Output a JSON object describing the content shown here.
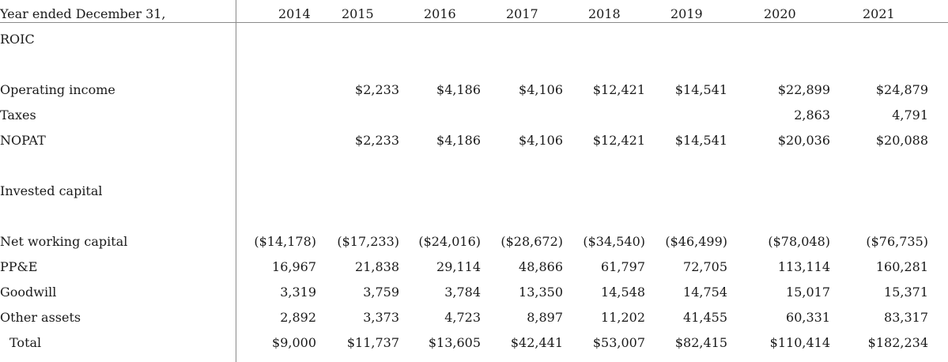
{
  "header": {
    "label": "Year ended December 31,",
    "years": [
      "2014",
      "2015",
      "2016",
      "2017",
      "2018",
      "2019",
      "2020",
      "2021"
    ]
  },
  "sections": {
    "roic": "ROIC",
    "invested_capital": "Invested capital"
  },
  "rows": {
    "operating_income": {
      "label": "Operating income",
      "values": [
        "",
        "$2,233",
        "$4,186",
        "$4,106",
        "$12,421",
        "$14,541",
        "$22,899",
        "$24,879"
      ]
    },
    "taxes": {
      "label": "Taxes",
      "values": [
        "",
        "",
        "",
        "",
        "",
        "",
        "2,863",
        "4,791"
      ]
    },
    "nopat": {
      "label": "NOPAT",
      "values": [
        "",
        "$2,233",
        "$4,186",
        "$4,106",
        "$12,421",
        "$14,541",
        "$20,036",
        "$20,088"
      ]
    },
    "net_working_capital": {
      "label": "Net working capital",
      "values": [
        "($14,178)",
        "($17,233)",
        "($24,016)",
        "($28,672)",
        "($34,540)",
        "($46,499)",
        "($78,048)",
        "($76,735)"
      ]
    },
    "ppe": {
      "label": "PP&E",
      "values": [
        "16,967",
        "21,838",
        "29,114",
        "48,866",
        "61,797",
        "72,705",
        "113,114",
        "160,281"
      ]
    },
    "goodwill": {
      "label": "Goodwill",
      "values": [
        "3,319",
        "3,759",
        "3,784",
        "13,350",
        "14,548",
        "14,754",
        "15,017",
        "15,371"
      ]
    },
    "other_assets": {
      "label": "Other assets",
      "values": [
        "2,892",
        "3,373",
        "4,723",
        "8,897",
        "11,202",
        "41,455",
        "60,331",
        "83,317"
      ]
    },
    "total": {
      "label": "Total",
      "values": [
        "$9,000",
        "$11,737",
        "$13,605",
        "$42,441",
        "$53,007",
        "$82,415",
        "$110,414",
        "$182,234"
      ]
    }
  }
}
